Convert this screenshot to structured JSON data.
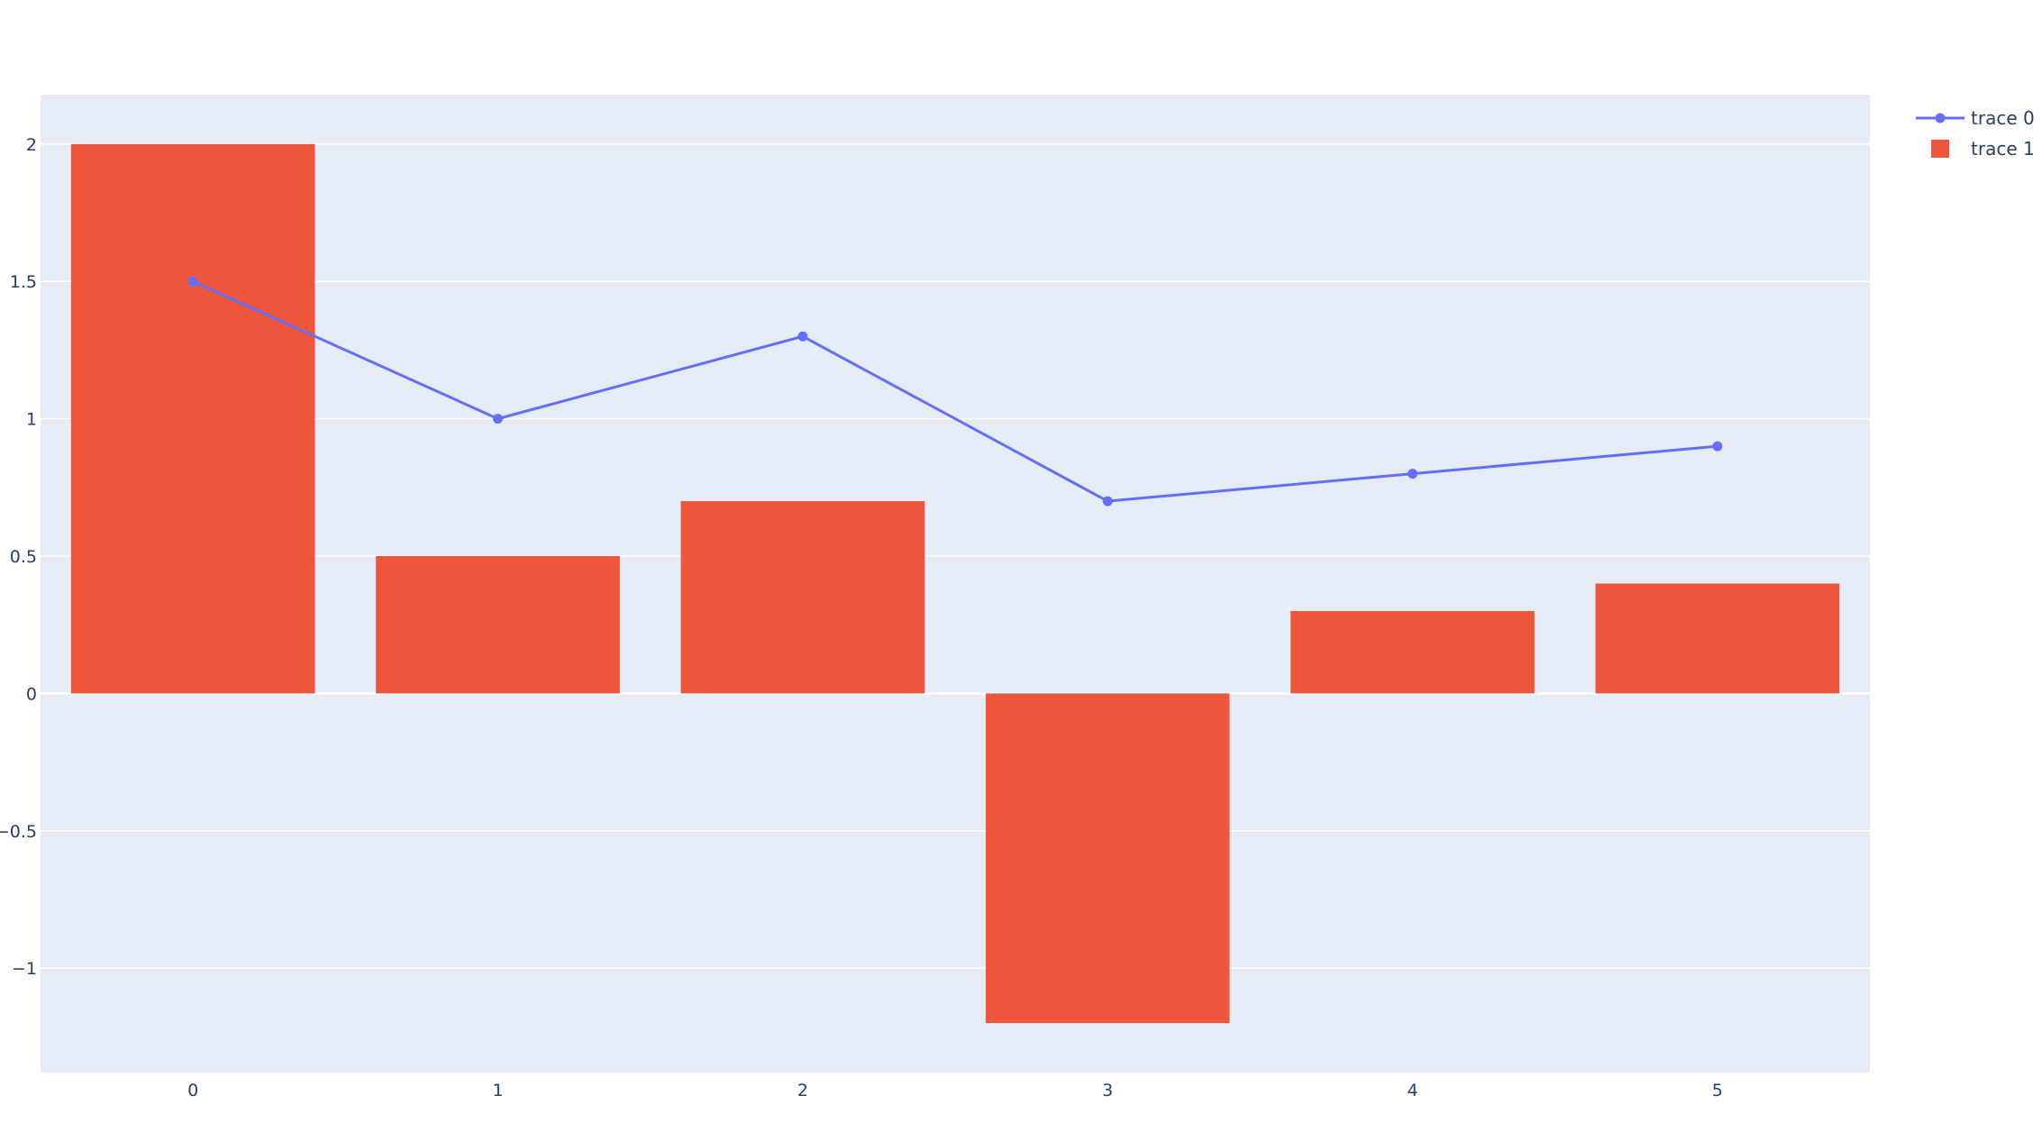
{
  "chart_data": {
    "type": "bar",
    "x": [
      0,
      1,
      2,
      3,
      4,
      5
    ],
    "xticks": [
      "0",
      "1",
      "2",
      "3",
      "4",
      "5"
    ],
    "xlim": [
      -0.5,
      5.5
    ],
    "ylim": [
      -1.38,
      2.18
    ],
    "yticks": [
      {
        "value": 2,
        "label": "2"
      },
      {
        "value": 1.5,
        "label": "1.5"
      },
      {
        "value": 1,
        "label": "1"
      },
      {
        "value": 0.5,
        "label": "0.5"
      },
      {
        "value": 0,
        "label": "0"
      },
      {
        "value": -0.5,
        "label": "−0.5"
      },
      {
        "value": -1,
        "label": "−1"
      }
    ],
    "grid": true,
    "legend_position": "top-right",
    "series": [
      {
        "name": "trace 0",
        "kind": "line+markers",
        "color": "#636efa",
        "values": [
          1.5,
          1.0,
          1.3,
          0.7,
          0.8,
          0.9
        ]
      },
      {
        "name": "trace 1",
        "kind": "bar",
        "color": "#ef553b",
        "values": [
          2.0,
          0.5,
          0.7,
          -1.2,
          0.3,
          0.4
        ]
      }
    ],
    "plot_bg": "#e5ecf6"
  }
}
